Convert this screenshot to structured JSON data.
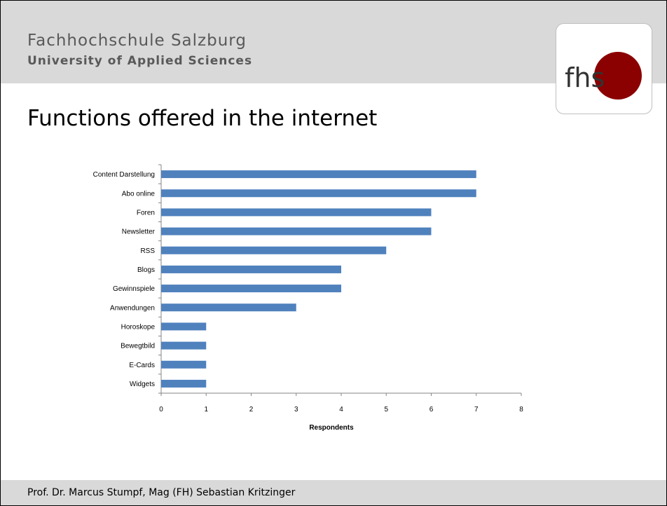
{
  "header": {
    "institution_name": "Fachhochschule Salzburg",
    "institution_subtitle": "University of Applied Sciences",
    "logo_text": "fhs"
  },
  "slide_title": "Functions offered in the internet",
  "chart_data": {
    "type": "bar",
    "orientation": "horizontal",
    "categories": [
      "Content Darstellung",
      "Abo online",
      "Foren",
      "Newsletter",
      "RSS",
      "Blogs",
      "Gewinnspiele",
      "Anwendungen",
      "Horoskope",
      "Bewegtbild",
      "E-Cards",
      "Widgets"
    ],
    "values": [
      7,
      7,
      6,
      6,
      5,
      4,
      4,
      3,
      1,
      1,
      1,
      1
    ],
    "xlabel": "Respondents",
    "ylabel": "",
    "xlim": [
      0,
      8
    ],
    "xticks": [
      "0",
      "1",
      "2",
      "3",
      "4",
      "5",
      "6",
      "7",
      "8"
    ],
    "grid": false,
    "bar_color": "#4f81bd"
  },
  "footer": {
    "author": "Prof. Dr. Marcus Stumpf, Mag (FH) Sebastian Kritzinger"
  }
}
